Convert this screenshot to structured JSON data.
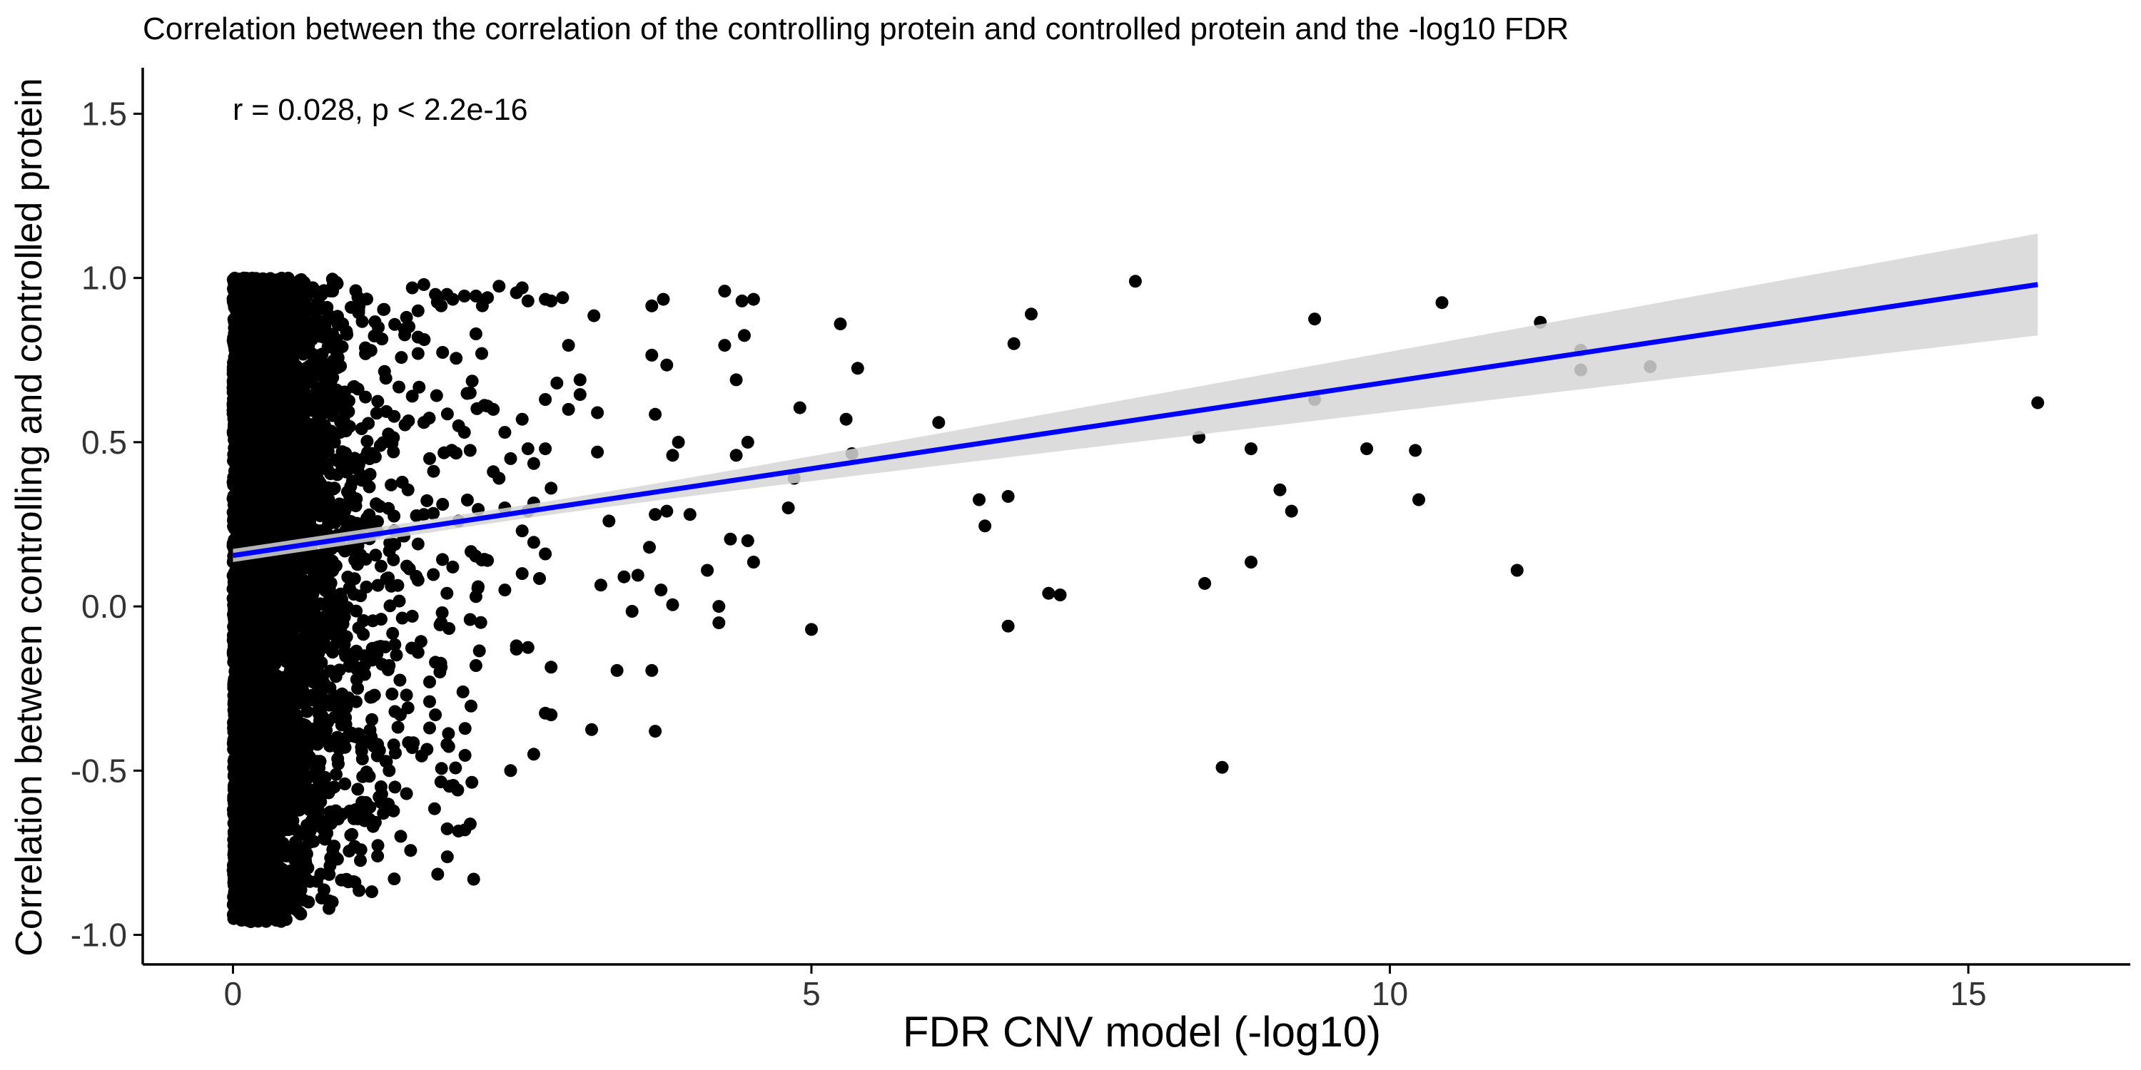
{
  "chart_data": {
    "type": "scatter",
    "title": "Correlation between the correlation of the controlling protein and controlled protein and the -log10 FDR",
    "xlabel": "FDR CNV model (-log10)",
    "ylabel": "Correlation between controlling and controlled protein",
    "annotation": "r = 0.028, p < 2.2e-16",
    "xlim": [
      -0.78,
      16.4
    ],
    "ylim": [
      -1.09,
      1.64
    ],
    "x_ticks": [
      0,
      5,
      10,
      15
    ],
    "x_tick_labels": [
      "0",
      "5",
      "10",
      "15"
    ],
    "y_ticks": [
      -1.0,
      -0.5,
      0.0,
      0.5,
      1.0,
      1.5
    ],
    "y_tick_labels": [
      "-1.0",
      "-0.5",
      "0.0",
      "0.5",
      "1.0",
      "1.5"
    ],
    "grid": false,
    "legend": "none",
    "point_color": "#000000",
    "regression": {
      "x_start": 0,
      "x_end": 15.6,
      "y_start": 0.155,
      "y_end": 0.98,
      "color": "#0000ff",
      "ci_color": "#d6d6d6",
      "ci_at_start": [
        0.135,
        0.175
      ],
      "ci_at_end": [
        0.825,
        1.135
      ]
    },
    "dense_cluster": {
      "note": "thousands of overlapping points concentrated at x between 0 and ~1.5",
      "x_range": [
        0,
        1.5
      ],
      "y_range": [
        -0.96,
        1.0
      ]
    },
    "series": [
      {
        "points": [
          [
            15.6,
            0.62
          ],
          [
            12.25,
            0.73
          ],
          [
            11.65,
            0.72
          ],
          [
            11.65,
            0.78
          ],
          [
            11.3,
            0.865
          ],
          [
            11.1,
            0.11
          ],
          [
            10.45,
            0.925
          ],
          [
            10.25,
            0.325
          ],
          [
            10.22,
            0.475
          ],
          [
            9.8,
            0.48
          ],
          [
            9.35,
            0.63
          ],
          [
            9.35,
            0.875
          ],
          [
            9.15,
            0.29
          ],
          [
            9.05,
            0.355
          ],
          [
            8.8,
            0.48
          ],
          [
            8.8,
            0.135
          ],
          [
            8.55,
            -0.49
          ],
          [
            8.4,
            0.07
          ],
          [
            8.35,
            0.515
          ],
          [
            7.8,
            0.99
          ],
          [
            7.15,
            0.035
          ],
          [
            7.05,
            0.04
          ],
          [
            6.9,
            0.89
          ],
          [
            6.75,
            0.8
          ],
          [
            6.7,
            0.335
          ],
          [
            6.7,
            -0.06
          ],
          [
            6.5,
            0.245
          ],
          [
            6.45,
            0.325
          ],
          [
            6.1,
            0.56
          ],
          [
            5.35,
            0.465
          ],
          [
            5.4,
            0.725
          ],
          [
            5.3,
            0.57
          ],
          [
            5.25,
            0.86
          ],
          [
            5.0,
            -0.07
          ],
          [
            4.9,
            0.605
          ],
          [
            4.85,
            0.39
          ],
          [
            4.8,
            0.3
          ],
          [
            4.5,
            0.935
          ],
          [
            4.5,
            0.135
          ],
          [
            4.45,
            0.2
          ],
          [
            4.45,
            0.5
          ],
          [
            4.42,
            0.825
          ],
          [
            4.4,
            0.93
          ],
          [
            4.35,
            0.69
          ],
          [
            4.35,
            0.46
          ],
          [
            4.3,
            0.205
          ],
          [
            4.25,
            0.96
          ],
          [
            4.25,
            0.795
          ],
          [
            4.2,
            0.0
          ],
          [
            4.2,
            -0.05
          ],
          [
            4.1,
            0.11
          ],
          [
            3.95,
            0.28
          ],
          [
            3.75,
            0.29
          ],
          [
            3.75,
            0.735
          ],
          [
            3.72,
            0.935
          ],
          [
            3.7,
            0.05
          ],
          [
            3.8,
            0.46
          ],
          [
            3.85,
            0.5
          ],
          [
            3.8,
            0.005
          ],
          [
            3.62,
            0.915
          ],
          [
            3.62,
            0.765
          ],
          [
            3.65,
            0.585
          ],
          [
            3.65,
            0.28
          ],
          [
            3.6,
            0.18
          ],
          [
            3.5,
            0.095
          ],
          [
            3.45,
            -0.015
          ],
          [
            3.38,
            0.09
          ],
          [
            3.32,
            -0.195
          ],
          [
            3.62,
            -0.195
          ],
          [
            3.65,
            -0.38
          ],
          [
            3.25,
            0.26
          ],
          [
            3.18,
            0.065
          ],
          [
            3.15,
            0.47
          ],
          [
            3.15,
            0.59
          ],
          [
            3.12,
            0.885
          ],
          [
            3.1,
            -0.375
          ],
          [
            3.0,
            0.69
          ],
          [
            3.0,
            0.645
          ],
          [
            2.9,
            0.795
          ],
          [
            2.9,
            0.6
          ],
          [
            2.85,
            0.94
          ],
          [
            2.75,
            0.93
          ],
          [
            2.8,
            0.68
          ],
          [
            2.7,
            0.935
          ],
          [
            2.75,
            0.36
          ],
          [
            2.6,
            0.315
          ],
          [
            2.55,
            0.93
          ],
          [
            2.5,
            0.97
          ],
          [
            2.45,
            0.955
          ],
          [
            2.3,
            0.975
          ],
          [
            2.2,
            0.94
          ],
          [
            2.1,
            0.945
          ],
          [
            2.0,
            0.945
          ],
          [
            1.9,
            0.935
          ],
          [
            1.85,
            0.95
          ],
          [
            1.8,
            0.915
          ],
          [
            1.75,
            0.95
          ],
          [
            2.7,
            -0.325
          ],
          [
            2.75,
            -0.33
          ],
          [
            2.6,
            -0.45
          ],
          [
            2.75,
            -0.185
          ],
          [
            2.4,
            -0.5
          ],
          [
            2.55,
            -0.125
          ],
          [
            2.45,
            -0.12
          ],
          [
            2.7,
            0.16
          ],
          [
            2.65,
            0.085
          ],
          [
            2.6,
            0.195
          ],
          [
            2.7,
            0.48
          ],
          [
            2.6,
            0.435
          ],
          [
            2.4,
            0.45
          ],
          [
            2.35,
            0.53
          ],
          [
            2.2,
            0.61
          ],
          [
            2.15,
            0.77
          ],
          [
            2.1,
            0.83
          ],
          [
            2.05,
            0.65
          ],
          [
            2.05,
            0.475
          ],
          [
            2.0,
            0.53
          ],
          [
            1.95,
            0.55
          ],
          [
            1.95,
            0.26
          ],
          [
            1.9,
            0.12
          ],
          [
            1.85,
            0.04
          ],
          [
            1.8,
            -0.05
          ],
          [
            1.75,
            -0.17
          ],
          [
            1.7,
            -0.23
          ],
          [
            1.7,
            -0.29
          ],
          [
            1.75,
            -0.33
          ],
          [
            1.7,
            -0.37
          ],
          [
            1.8,
            -0.185
          ],
          [
            1.85,
            -0.42
          ],
          [
            2.2,
            0.14
          ],
          [
            2.1,
            0.03
          ],
          [
            2.1,
            -0.18
          ],
          [
            2.05,
            -0.04
          ],
          [
            2.55,
            0.29
          ],
          [
            2.5,
            0.1
          ],
          [
            2.45,
            -0.13
          ],
          [
            2.35,
            0.05
          ],
          [
            2.5,
            0.23
          ],
          [
            2.35,
            0.3
          ],
          [
            2.3,
            0.39
          ],
          [
            2.25,
            0.41
          ],
          [
            2.7,
            0.63
          ],
          [
            2.5,
            0.57
          ],
          [
            2.55,
            0.48
          ],
          [
            2.25,
            0.6
          ],
          [
            1.65,
            0.98
          ],
          [
            1.55,
            0.97
          ],
          [
            1.6,
            0.9
          ],
          [
            1.5,
            0.88
          ],
          [
            1.6,
            0.82
          ],
          [
            1.6,
            0.77
          ],
          [
            1.55,
            0.64
          ],
          [
            1.65,
            0.56
          ],
          [
            1.7,
            0.45
          ],
          [
            1.65,
            0.28
          ],
          [
            1.6,
            0.19
          ],
          [
            1.6,
            0.08
          ],
          [
            1.55,
            -0.03
          ],
          [
            1.6,
            -0.14
          ],
          [
            1.5,
            -0.27
          ],
          [
            1.55,
            -0.43
          ],
          [
            1.5,
            -0.57
          ],
          [
            1.4,
            -0.55
          ],
          [
            1.45,
            -0.7
          ],
          [
            1.25,
            -0.76
          ],
          [
            1.3,
            -0.63
          ],
          [
            1.35,
            -0.5
          ],
          [
            1.25,
            -0.42
          ],
          [
            1.4,
            -0.32
          ],
          [
            1.35,
            -0.18
          ]
        ]
      }
    ]
  }
}
